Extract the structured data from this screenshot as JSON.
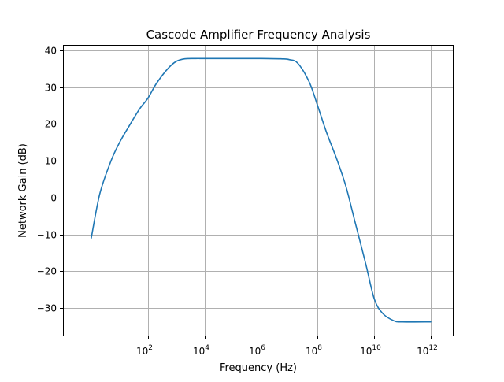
{
  "chart_data": {
    "type": "line",
    "title": "Cascode Amplifier Frequency Analysis",
    "xlabel": "Frequency (Hz)",
    "ylabel": "Network Gain (dB)",
    "x_scale": "log",
    "xlim": [
      0.1,
      6000000000000
    ],
    "ylim": [
      -37.5,
      41.5
    ],
    "grid": true,
    "x_ticks": [
      {
        "value": 100,
        "base": "10",
        "exp": "2"
      },
      {
        "value": 10000,
        "base": "10",
        "exp": "4"
      },
      {
        "value": 1000000,
        "base": "10",
        "exp": "6"
      },
      {
        "value": 100000000,
        "base": "10",
        "exp": "8"
      },
      {
        "value": 10000000000,
        "base": "10",
        "exp": "10"
      },
      {
        "value": 1000000000000,
        "base": "10",
        "exp": "12"
      }
    ],
    "y_ticks": [
      {
        "value": 40,
        "label": "40"
      },
      {
        "value": 30,
        "label": "30"
      },
      {
        "value": 20,
        "label": "20"
      },
      {
        "value": 10,
        "label": "10"
      },
      {
        "value": 0,
        "label": "0"
      },
      {
        "value": -10,
        "label": "−10"
      },
      {
        "value": -20,
        "label": "−20"
      },
      {
        "value": -30,
        "label": "−30"
      }
    ],
    "series": [
      {
        "color": "#1f77b4",
        "x": [
          1,
          2,
          5,
          10,
          20,
          50,
          100,
          200,
          500,
          1000,
          2000,
          5000,
          10000,
          100000,
          1000000,
          5000000,
          10000000,
          20000000,
          50000000,
          100000000,
          200000000,
          500000000,
          1000000000,
          2000000000,
          5000000000,
          10000000000,
          20000000000,
          50000000000,
          100000000000,
          1000000000000
        ],
        "y": [
          -11,
          1,
          10,
          15,
          19,
          24,
          27,
          31,
          35,
          37,
          37.7,
          37.8,
          37.8,
          37.8,
          37.8,
          37.7,
          37.5,
          36.5,
          31.5,
          25,
          18,
          10,
          3,
          -6,
          -18,
          -27.5,
          -31.5,
          -33.5,
          -33.8,
          -33.8
        ]
      }
    ]
  }
}
